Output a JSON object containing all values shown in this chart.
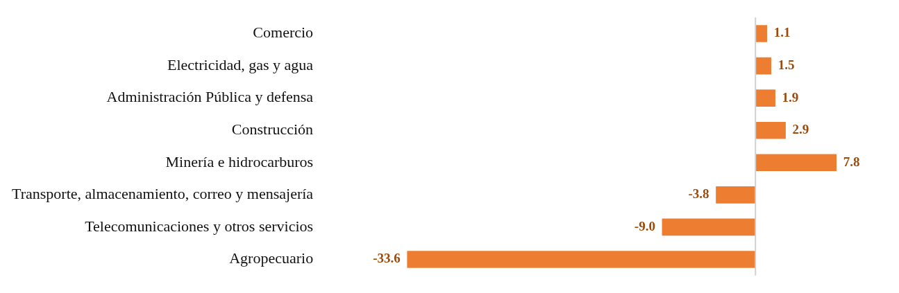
{
  "chart_data": {
    "type": "bar",
    "orientation": "horizontal",
    "categories": [
      "Comercio",
      "Electricidad, gas y agua",
      "Administración Pública y defensa",
      "Construcción",
      "Minería e hidrocarburos",
      "Transporte, almacenamiento, correo y mensajería",
      "Telecomunicaciones y otros servicios",
      "Agropecuario"
    ],
    "values": [
      1.1,
      1.5,
      1.9,
      2.9,
      7.8,
      -3.8,
      -9.0,
      -33.6
    ],
    "value_labels": [
      "1.1",
      "1.5",
      "1.9",
      "2.9",
      "7.8",
      "-3.8",
      "-9.0",
      "-33.6"
    ],
    "color": "#ed7d31",
    "data_labels": true,
    "tick_labels": "y"
  }
}
